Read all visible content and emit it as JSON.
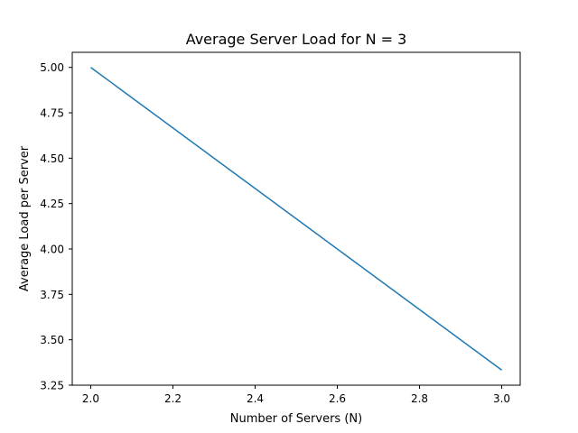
{
  "chart_data": {
    "type": "line",
    "title": "Average Server Load for N = 3",
    "xlabel": "Number of Servers (N)",
    "ylabel": "Average Load per Server",
    "xlim": [
      1.955,
      3.045
    ],
    "ylim": [
      3.25,
      5.083
    ],
    "xticks": [
      2.0,
      2.2,
      2.4,
      2.6,
      2.8,
      3.0
    ],
    "xtick_labels": [
      "2.0",
      "2.2",
      "2.4",
      "2.6",
      "2.8",
      "3.0"
    ],
    "yticks": [
      3.25,
      3.5,
      3.75,
      4.0,
      4.25,
      4.5,
      4.75,
      5.0
    ],
    "ytick_labels": [
      "3.25",
      "3.50",
      "3.75",
      "4.00",
      "4.25",
      "4.50",
      "4.75",
      "5.00"
    ],
    "grid": false,
    "series": [
      {
        "x": [
          2,
          3
        ],
        "values": [
          5.0,
          3.3333
        ],
        "color": "#1f77b4"
      }
    ]
  }
}
